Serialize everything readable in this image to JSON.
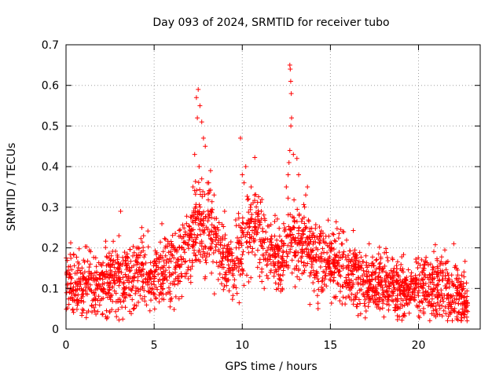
{
  "chart_data": {
    "type": "scatter",
    "title": "Day 093 of 2024, SRMTID for receiver tubo",
    "xlabel": "GPS time / hours",
    "ylabel": "SRMTID / TECUs",
    "xlim": [
      0,
      23.5
    ],
    "ylim": [
      0,
      0.7
    ],
    "xticks": [
      0,
      5,
      10,
      15,
      20
    ],
    "yticks": [
      0,
      0.1,
      0.2,
      0.3,
      0.4,
      0.5,
      0.6,
      0.7
    ],
    "grid": true,
    "marker": "+",
    "color": "#ff0000",
    "trend": [
      [
        0.0,
        0.11
      ],
      [
        1.0,
        0.11
      ],
      [
        2.0,
        0.12
      ],
      [
        3.0,
        0.12
      ],
      [
        4.0,
        0.13
      ],
      [
        5.0,
        0.13
      ],
      [
        6.0,
        0.15
      ],
      [
        6.8,
        0.2
      ],
      [
        7.5,
        0.26
      ],
      [
        8.3,
        0.24
      ],
      [
        9.0,
        0.17
      ],
      [
        9.5,
        0.15
      ],
      [
        10.0,
        0.22
      ],
      [
        10.7,
        0.27
      ],
      [
        11.3,
        0.2
      ],
      [
        12.0,
        0.17
      ],
      [
        12.7,
        0.22
      ],
      [
        13.5,
        0.21
      ],
      [
        14.0,
        0.18
      ],
      [
        15.0,
        0.16
      ],
      [
        16.0,
        0.15
      ],
      [
        16.5,
        0.13
      ],
      [
        17.5,
        0.11
      ],
      [
        18.5,
        0.1
      ],
      [
        19.5,
        0.09
      ],
      [
        20.5,
        0.11
      ],
      [
        21.5,
        0.1
      ],
      [
        22.2,
        0.08
      ],
      [
        22.8,
        0.07
      ]
    ],
    "spread": 0.045,
    "samples_per_hour": 105,
    "peaks": [
      {
        "x": 7.5,
        "y": 0.59
      },
      {
        "x": 7.4,
        "y": 0.57
      },
      {
        "x": 7.6,
        "y": 0.55
      },
      {
        "x": 7.7,
        "y": 0.51
      },
      {
        "x": 7.8,
        "y": 0.47
      },
      {
        "x": 7.9,
        "y": 0.45
      },
      {
        "x": 7.45,
        "y": 0.52
      },
      {
        "x": 7.3,
        "y": 0.43
      },
      {
        "x": 7.55,
        "y": 0.4
      },
      {
        "x": 7.7,
        "y": 0.37
      },
      {
        "x": 8.1,
        "y": 0.36
      },
      {
        "x": 8.2,
        "y": 0.39
      },
      {
        "x": 8.4,
        "y": 0.33
      },
      {
        "x": 7.2,
        "y": 0.35
      },
      {
        "x": 9.9,
        "y": 0.47
      },
      {
        "x": 10.2,
        "y": 0.4
      },
      {
        "x": 10.0,
        "y": 0.38
      },
      {
        "x": 10.5,
        "y": 0.35
      },
      {
        "x": 10.7,
        "y": 0.33
      },
      {
        "x": 10.1,
        "y": 0.36
      },
      {
        "x": 12.7,
        "y": 0.65
      },
      {
        "x": 12.72,
        "y": 0.64
      },
      {
        "x": 12.75,
        "y": 0.61
      },
      {
        "x": 12.78,
        "y": 0.58
      },
      {
        "x": 12.8,
        "y": 0.52
      },
      {
        "x": 12.76,
        "y": 0.5
      },
      {
        "x": 12.7,
        "y": 0.44
      },
      {
        "x": 12.9,
        "y": 0.43
      },
      {
        "x": 12.65,
        "y": 0.41
      },
      {
        "x": 12.6,
        "y": 0.38
      },
      {
        "x": 13.2,
        "y": 0.38
      },
      {
        "x": 13.1,
        "y": 0.42
      },
      {
        "x": 12.5,
        "y": 0.35
      },
      {
        "x": 13.7,
        "y": 0.35
      },
      {
        "x": 13.6,
        "y": 0.33
      },
      {
        "x": 3.1,
        "y": 0.29
      },
      {
        "x": 3.0,
        "y": 0.23
      },
      {
        "x": 4.3,
        "y": 0.25
      },
      {
        "x": 4.4,
        "y": 0.23
      },
      {
        "x": 9.0,
        "y": 0.29
      },
      {
        "x": 15.7,
        "y": 0.24
      },
      {
        "x": 22.0,
        "y": 0.21
      },
      {
        "x": 17.2,
        "y": 0.21
      }
    ]
  }
}
